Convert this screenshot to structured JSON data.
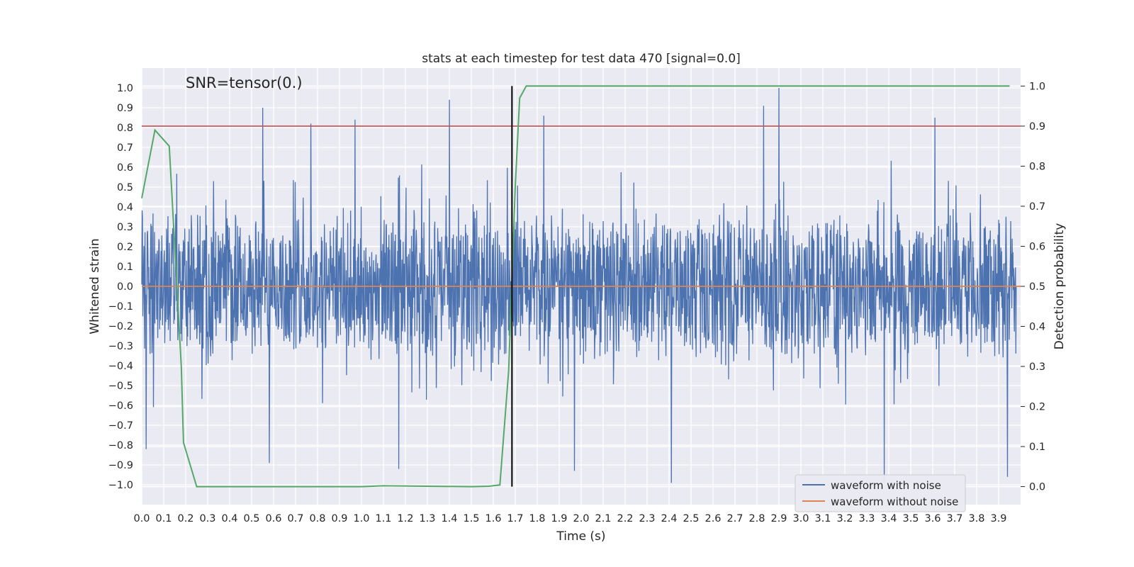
{
  "chart_data": {
    "type": "line",
    "title": "stats at each timestep for test data 470 [signal=0.0]",
    "annotation": "SNR=tensor(0.)",
    "xlabel": "Time (s)",
    "ylabel": "Whitened strain",
    "y2label": "Detection probability",
    "xlim": [
      0.0,
      4.0
    ],
    "ylim": [
      -1.1,
      1.1
    ],
    "y2lim": [
      -0.045,
      1.045
    ],
    "x_ticks": [
      "0.0",
      "0.1",
      "0.2",
      "0.3",
      "0.4",
      "0.5",
      "0.6",
      "0.7",
      "0.8",
      "0.9",
      "1.0",
      "1.1",
      "1.2",
      "1.3",
      "1.4",
      "1.5",
      "1.6",
      "1.7",
      "1.8",
      "1.9",
      "2.0",
      "2.1",
      "2.2",
      "2.3",
      "2.4",
      "2.5",
      "2.6",
      "2.7",
      "2.8",
      "2.9",
      "3.0",
      "3.1",
      "3.2",
      "3.3",
      "3.4",
      "3.5",
      "3.6",
      "3.7",
      "3.8",
      "3.9"
    ],
    "y_ticks": [
      "1.0",
      "0.9",
      "0.8",
      "0.7",
      "0.6",
      "0.5",
      "0.4",
      "0.3",
      "0.2",
      "0.1",
      "0.0",
      "−0.1",
      "−0.2",
      "−0.3",
      "−0.4",
      "−0.5",
      "−0.6",
      "−0.7",
      "−0.8",
      "−0.9",
      "−1.0"
    ],
    "y2_ticks": [
      "1.0",
      "0.9",
      "0.8",
      "0.7",
      "0.6",
      "0.5",
      "0.4",
      "0.3",
      "0.2",
      "0.1",
      "0.0"
    ],
    "grid": true,
    "legend_placement": "lower-right",
    "series": [
      {
        "name": "waveform with noise",
        "color": "#4c72b0",
        "axis": "left",
        "style": "dense-noise",
        "envelope_typical": 0.4,
        "peaks": [
          {
            "x": 0.55,
            "y": 0.9
          },
          {
            "x": 0.77,
            "y": 0.82
          },
          {
            "x": 0.97,
            "y": 0.84
          },
          {
            "x": 1.4,
            "y": 0.94
          },
          {
            "x": 1.83,
            "y": 0.86
          },
          {
            "x": 2.83,
            "y": 0.91
          },
          {
            "x": 2.9,
            "y": 1.0
          },
          {
            "x": 3.61,
            "y": 0.85
          },
          {
            "x": 0.02,
            "y": -0.82
          },
          {
            "x": 0.58,
            "y": -0.89
          },
          {
            "x": 1.17,
            "y": -0.92
          },
          {
            "x": 1.97,
            "y": -0.93
          },
          {
            "x": 2.41,
            "y": -0.99
          },
          {
            "x": 3.38,
            "y": -0.99
          },
          {
            "x": 3.94,
            "y": -0.96
          }
        ]
      },
      {
        "name": "waveform without noise",
        "color": "#dd8452",
        "axis": "left",
        "x": [
          0.0,
          4.0
        ],
        "y": [
          0.0,
          0.0
        ]
      },
      {
        "name": "",
        "color": "#55a868",
        "axis": "right",
        "x": [
          0.0,
          0.06,
          0.125,
          0.18,
          0.19,
          0.25,
          0.5,
          1.0,
          1.1,
          1.5,
          1.58,
          1.63,
          1.67,
          1.7,
          1.72,
          1.75,
          3.95
        ],
        "y": [
          0.72,
          0.89,
          0.85,
          0.3,
          0.11,
          0.0,
          0.0,
          0.0,
          0.002,
          0.0,
          0.001,
          0.004,
          0.29,
          0.75,
          0.97,
          1.0,
          1.0
        ]
      }
    ],
    "threshold_line": {
      "color": "#c44e52",
      "y2": 0.9
    },
    "vertical_marker": {
      "color": "#000000",
      "x": 1.685,
      "y2_range": [
        0.0,
        1.0
      ]
    }
  }
}
